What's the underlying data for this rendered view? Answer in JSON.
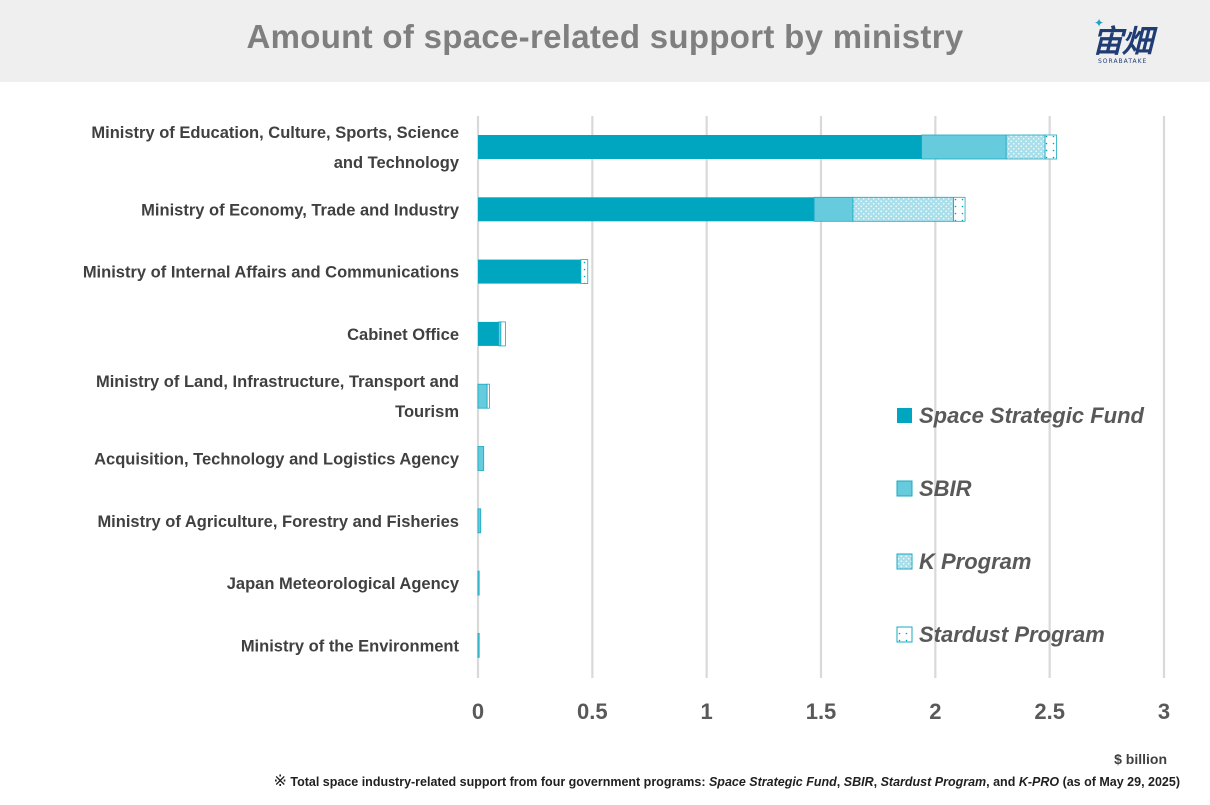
{
  "header": {
    "title": "Amount of space-related support by ministry",
    "logo_text": "宙畑",
    "logo_subtext": "SORABATAKE"
  },
  "chart_data": {
    "type": "bar",
    "orientation": "horizontal",
    "stacked": true,
    "categories": [
      "Ministry of Education, Culture, Sports, Science and Technology",
      "Ministry of Economy, Trade and Industry",
      "Ministry of Internal Affairs and Communications",
      "Cabinet Office",
      "Ministry of Land, Infrastructure, Transport and Tourism",
      "Acquisition, Technology and Logistics Agency",
      "Ministry of Agriculture, Forestry and Fisheries",
      "Japan Meteorological Agency",
      "Ministry of the Environment"
    ],
    "category_lines": [
      [
        "Ministry of Education, Culture, Sports, Science",
        "and Technology"
      ],
      [
        "Ministry of Economy, Trade and Industry"
      ],
      [
        "Ministry of Internal Affairs and Communications"
      ],
      [
        "Cabinet Office"
      ],
      [
        "Ministry of Land, Infrastructure, Transport and",
        "Tourism"
      ],
      [
        "Acquisition, Technology and Logistics Agency"
      ],
      [
        "Ministry of Agriculture, Forestry and Fisheries"
      ],
      [
        "Japan Meteorological Agency"
      ],
      [
        "Ministry of the Environment"
      ]
    ],
    "series": [
      {
        "name": "Space Strategic Fund",
        "values": [
          1.94,
          1.47,
          0.45,
          0.09,
          0.0,
          0.0,
          0.0,
          0.0,
          0.0
        ],
        "color": "#00a6c0",
        "pattern": "solid"
      },
      {
        "name": "SBIR",
        "values": [
          0.37,
          0.17,
          0.0,
          0.01,
          0.04,
          0.025,
          0.012,
          0.005,
          0.005
        ],
        "color": "#66cbdc",
        "pattern": "solid"
      },
      {
        "name": "K Program",
        "values": [
          0.17,
          0.44,
          0.0,
          0.0,
          0.0,
          0.0,
          0.0,
          0.0,
          0.0
        ],
        "color": "#a9dfea",
        "pattern": "dots-dense"
      },
      {
        "name": "Stardust Program",
        "values": [
          0.05,
          0.05,
          0.03,
          0.02,
          0.01,
          0.0,
          0.0,
          0.0,
          0.0
        ],
        "color": "#ffffff",
        "pattern": "dots-sparse"
      }
    ],
    "xlim": [
      0,
      3
    ],
    "xticks": [
      0,
      0.5,
      1,
      1.5,
      2,
      2.5,
      3
    ],
    "xtick_labels": [
      "0",
      "0.5",
      "1",
      "1.5",
      "2",
      "2.5",
      "3"
    ],
    "grid": true,
    "legend_position": "right",
    "unit_label": "$ billion"
  },
  "footnote": {
    "mark": "※",
    "prefix": " Total space industry-related support from four government programs: ",
    "p1": "Space Strategic Fund",
    "sep1": ", ",
    "p2": "SBIR",
    "sep2": ", ",
    "p3": "Stardust Program",
    "sep3": ", and ",
    "p4": "K-PRO",
    "suffix": " (as of May 29, 2025)"
  }
}
